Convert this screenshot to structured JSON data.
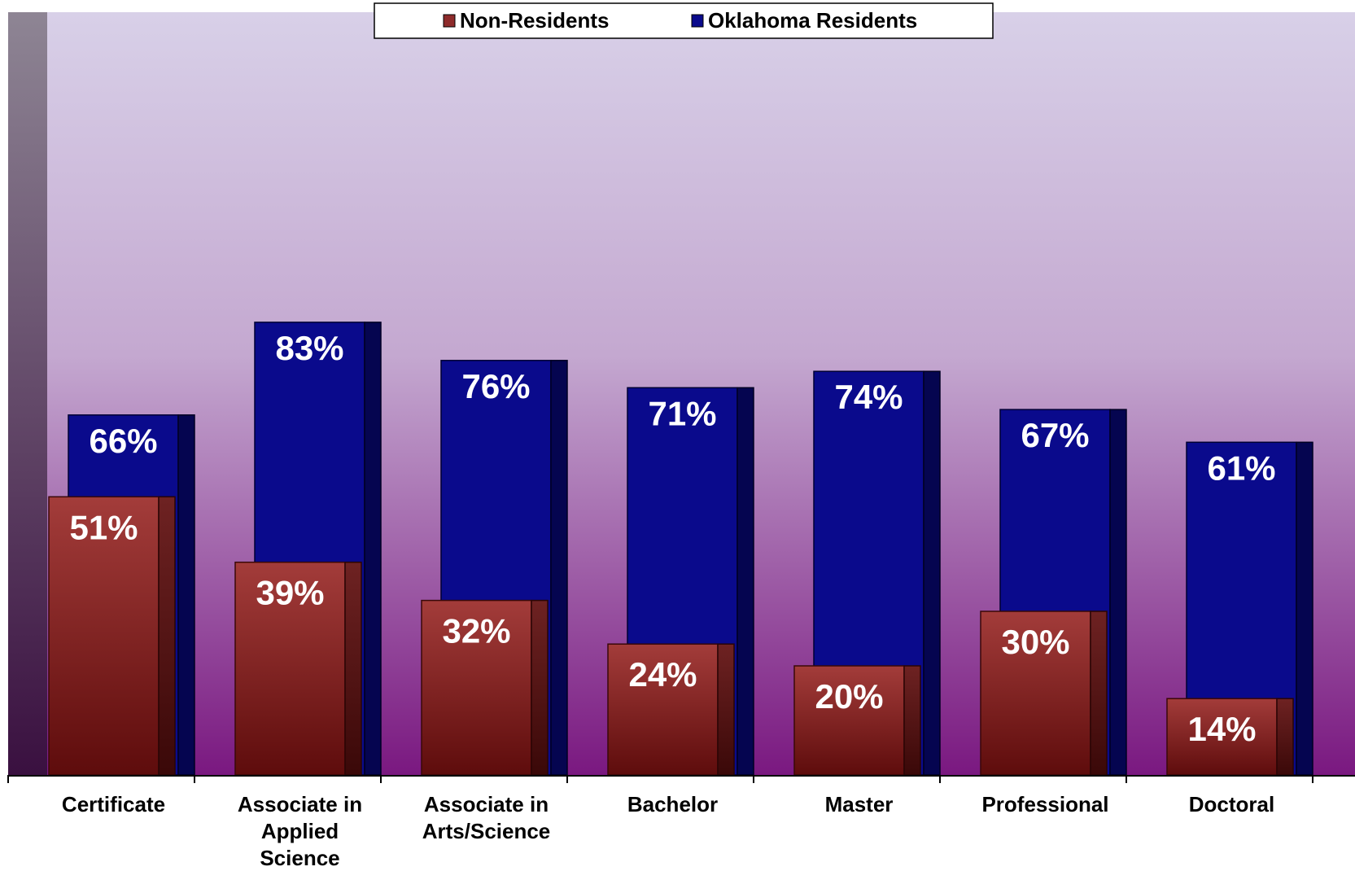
{
  "chart_data": {
    "type": "bar",
    "categories": [
      [
        "Certificate"
      ],
      [
        "Associate in",
        "Applied",
        "Science"
      ],
      [
        "Associate in",
        "Arts/Science"
      ],
      [
        "Bachelor"
      ],
      [
        "Master"
      ],
      [
        "Professional"
      ],
      [
        "Doctoral"
      ]
    ],
    "series": [
      {
        "name": "Oklahoma Residents",
        "values": [
          66,
          83,
          76,
          71,
          74,
          67,
          61
        ],
        "labels": [
          "66%",
          "83%",
          "76%",
          "71%",
          "74%",
          "67%",
          "61%"
        ],
        "color": "#0a0a8c"
      },
      {
        "name": "Non-Residents",
        "values": [
          51,
          39,
          32,
          24,
          20,
          30,
          14
        ],
        "labels": [
          "51%",
          "39%",
          "32%",
          "24%",
          "20%",
          "30%",
          "14%"
        ],
        "color": "#8e2b2b"
      }
    ],
    "legend": {
      "position": "top",
      "items": [
        "Non-Residents",
        "Oklahoma Residents"
      ]
    },
    "ylim": [
      0,
      100
    ],
    "grid": false,
    "colors": {
      "background_top": "#d8cde6",
      "background_bottom": "#7a1a7e",
      "residents": "#0a0a8c",
      "non_residents": "#8e2b2b"
    }
  }
}
